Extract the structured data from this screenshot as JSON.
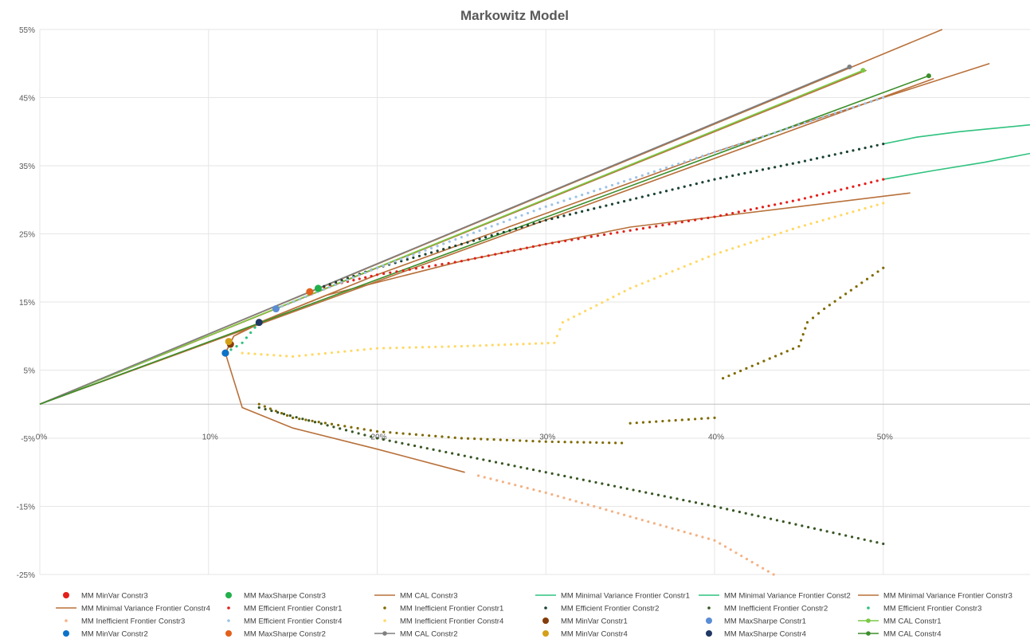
{
  "chart_data": {
    "type": "scatter",
    "title": "Markowitz Model",
    "xlabel": "",
    "ylabel": "",
    "xlim": [
      0,
      0.587
    ],
    "ylim": [
      -0.25,
      0.55
    ],
    "x_ticks": [
      "0%",
      "10%",
      "20%",
      "30%",
      "40%",
      "50%"
    ],
    "x_tick_values": [
      0,
      0.1,
      0.2,
      0.3,
      0.4,
      0.5
    ],
    "y_ticks": [
      "55%",
      "45%",
      "35%",
      "25%",
      "15%",
      "5%",
      "-5%",
      "-15%",
      "-25%"
    ],
    "y_tick_values": [
      0.55,
      0.45,
      0.35,
      0.25,
      0.15,
      0.05,
      -0.05,
      -0.15,
      -0.25
    ],
    "grid": true,
    "legend_position": "bottom",
    "series": [
      {
        "name": "MM MinVar Constr3",
        "kind": "marker",
        "color": "#e3201b",
        "points": [
          [
            0.11,
            0.075
          ]
        ]
      },
      {
        "name": "MM MaxSharpe Constr3",
        "kind": "marker",
        "color": "#22b04b",
        "points": [
          [
            0.165,
            0.17
          ]
        ]
      },
      {
        "name": "MM CAL Constr3",
        "kind": "line",
        "color": "#b8703a",
        "points": [
          [
            0,
            0
          ],
          [
            0.535,
            0.55
          ]
        ]
      },
      {
        "name": "MM Minimal Variance Frontier Constr1",
        "kind": "line",
        "color": "#2ec27e",
        "points": [
          [
            0.5,
            0.382
          ],
          [
            0.52,
            0.392
          ],
          [
            0.545,
            0.4
          ],
          [
            0.587,
            0.41
          ]
        ]
      },
      {
        "name": "MM Minimal Variance Frontier Const2",
        "kind": "line",
        "color": "#2ec27e",
        "points": [
          [
            0.5,
            0.33
          ],
          [
            0.53,
            0.343
          ],
          [
            0.56,
            0.355
          ],
          [
            0.587,
            0.368
          ]
        ]
      },
      {
        "name": "MM Minimal Variance Frontier Constr3",
        "kind": "line",
        "color": "#b8703a",
        "points": [
          [
            0.252,
            -0.1
          ],
          [
            0.2,
            -0.066
          ],
          [
            0.15,
            -0.035
          ],
          [
            0.12,
            -0.005
          ],
          [
            0.11,
            0.075
          ],
          [
            0.115,
            0.1
          ],
          [
            0.13,
            0.12
          ],
          [
            0.17,
            0.16
          ],
          [
            0.25,
            0.21
          ],
          [
            0.35,
            0.26
          ],
          [
            0.45,
            0.29
          ],
          [
            0.516,
            0.31
          ]
        ]
      },
      {
        "name": "MM Minimal Variance Frontier Constr4",
        "kind": "line",
        "color": "#b8703a",
        "points": [
          [
            0.11,
            0.075
          ],
          [
            0.115,
            0.1
          ],
          [
            0.14,
            0.13
          ],
          [
            0.2,
            0.19
          ],
          [
            0.3,
            0.28
          ],
          [
            0.4,
            0.37
          ],
          [
            0.5,
            0.45
          ],
          [
            0.563,
            0.5
          ]
        ]
      },
      {
        "name": "MM Efficient Frontier Constr1",
        "kind": "dots",
        "color": "#e3201b",
        "points": [
          [
            0.165,
            0.17
          ],
          [
            0.2,
            0.19
          ],
          [
            0.25,
            0.21
          ],
          [
            0.27,
            0.22
          ],
          [
            0.3,
            0.235
          ],
          [
            0.35,
            0.255
          ],
          [
            0.4,
            0.275
          ],
          [
            0.45,
            0.3
          ],
          [
            0.5,
            0.33
          ]
        ]
      },
      {
        "name": "MM Inefficient Frontier Constr1",
        "kind": "dots",
        "color": "#7f6a00",
        "points": [
          [
            0.13,
            0.0
          ],
          [
            0.15,
            -0.02
          ],
          [
            0.2,
            -0.04
          ],
          [
            0.25,
            -0.05
          ],
          [
            0.3,
            -0.055
          ],
          [
            0.345,
            -0.057
          ]
        ]
      },
      {
        "name": "MM Efficient Frontier Constr2",
        "kind": "dots",
        "color": "#1b4332",
        "points": [
          [
            0.165,
            0.17
          ],
          [
            0.2,
            0.2
          ],
          [
            0.25,
            0.235
          ],
          [
            0.3,
            0.27
          ],
          [
            0.35,
            0.3
          ],
          [
            0.4,
            0.33
          ],
          [
            0.45,
            0.355
          ],
          [
            0.5,
            0.382
          ]
        ]
      },
      {
        "name": "MM Inefficient Frontier Constr2",
        "kind": "dots",
        "color": "#375623",
        "points": [
          [
            0.13,
            -0.005
          ],
          [
            0.2,
            -0.05
          ],
          [
            0.3,
            -0.1
          ],
          [
            0.4,
            -0.15
          ],
          [
            0.5,
            -0.205
          ]
        ]
      },
      {
        "name": "MM Efficient Frontier Constr3",
        "kind": "dots",
        "color": "#2ec27e",
        "points": [
          [
            0.11,
            0.075
          ],
          [
            0.12,
            0.09
          ],
          [
            0.13,
            0.12
          ]
        ]
      },
      {
        "name": "MM Inefficient Frontier Constr3",
        "kind": "dots",
        "color": "#f4b183",
        "points": [
          [
            0.26,
            -0.105
          ],
          [
            0.3,
            -0.13
          ],
          [
            0.35,
            -0.165
          ],
          [
            0.4,
            -0.2
          ],
          [
            0.435,
            -0.25
          ]
        ]
      },
      {
        "name": "MM Efficient Frontier Constr4",
        "kind": "dots",
        "color": "#9dc3e6",
        "points": [
          [
            0.14,
            0.14
          ],
          [
            0.2,
            0.2
          ],
          [
            0.3,
            0.29
          ],
          [
            0.4,
            0.37
          ],
          [
            0.5,
            0.45
          ]
        ]
      },
      {
        "name": "MM Inefficient Frontier Constr4",
        "kind": "dots",
        "color": "#ffd966",
        "points": [
          [
            0.12,
            0.075
          ],
          [
            0.15,
            0.07
          ],
          [
            0.2,
            0.082
          ],
          [
            0.25,
            0.085
          ],
          [
            0.305,
            0.09
          ],
          [
            0.31,
            0.12
          ],
          [
            0.35,
            0.17
          ],
          [
            0.4,
            0.22
          ],
          [
            0.45,
            0.26
          ],
          [
            0.5,
            0.295
          ]
        ]
      },
      {
        "name": "MM MinVar Constr1",
        "kind": "marker",
        "color": "#843c0c",
        "points": [
          [
            0.113,
            0.088
          ]
        ]
      },
      {
        "name": "MM MaxSharpe Constr1",
        "kind": "marker",
        "color": "#5b8dd6",
        "points": [
          [
            0.14,
            0.14
          ]
        ]
      },
      {
        "name": "MM CAL Constr1",
        "kind": "line_marker",
        "color": "#7ac943",
        "points": [
          [
            0,
            0
          ],
          [
            0.488,
            0.49
          ]
        ]
      },
      {
        "name": "MM MinVar Constr2",
        "kind": "marker",
        "color": "#0b73c8",
        "points": [
          [
            0.11,
            0.075
          ]
        ]
      },
      {
        "name": "MM MaxSharpe Constr2",
        "kind": "marker",
        "color": "#e3601b",
        "points": [
          [
            0.16,
            0.165
          ]
        ]
      },
      {
        "name": "MM CAL Constr2",
        "kind": "line_marker",
        "color": "#7f7f7f",
        "points": [
          [
            0,
            0
          ],
          [
            0.48,
            0.495
          ]
        ]
      },
      {
        "name": "MM MinVar Constr4",
        "kind": "marker",
        "color": "#d4a017",
        "points": [
          [
            0.112,
            0.092
          ]
        ]
      },
      {
        "name": "MM MaxSharpe Constr4",
        "kind": "marker",
        "color": "#1f3864",
        "points": [
          [
            0.13,
            0.12
          ]
        ]
      },
      {
        "name": "MM CAL Constr4",
        "kind": "line_marker",
        "color": "#3b8e2a",
        "points": [
          [
            0,
            0
          ],
          [
            0.527,
            0.482
          ]
        ]
      }
    ],
    "extra_segments": [
      {
        "series": "MM Inefficient Frontier Constr1",
        "kind": "dots",
        "color": "#7f6a00",
        "points": [
          [
            0.35,
            -0.028
          ],
          [
            0.4,
            -0.02
          ]
        ]
      },
      {
        "series": "MM Inefficient Frontier Constr1",
        "kind": "dots",
        "color": "#7f6a00",
        "points": [
          [
            0.405,
            0.038
          ],
          [
            0.45,
            0.085
          ],
          [
            0.455,
            0.12
          ],
          [
            0.465,
            0.14
          ],
          [
            0.5,
            0.2
          ]
        ]
      },
      {
        "series": "MM CAL Constr3",
        "kind": "line",
        "color": "#b8703a",
        "points": [
          [
            0,
            0
          ],
          [
            0.49,
            0.49
          ]
        ]
      },
      {
        "series": "MM CAL Constr4",
        "kind": "line",
        "color": "#b8703a",
        "points": [
          [
            0,
            0
          ],
          [
            0.53,
            0.478
          ]
        ]
      }
    ]
  }
}
